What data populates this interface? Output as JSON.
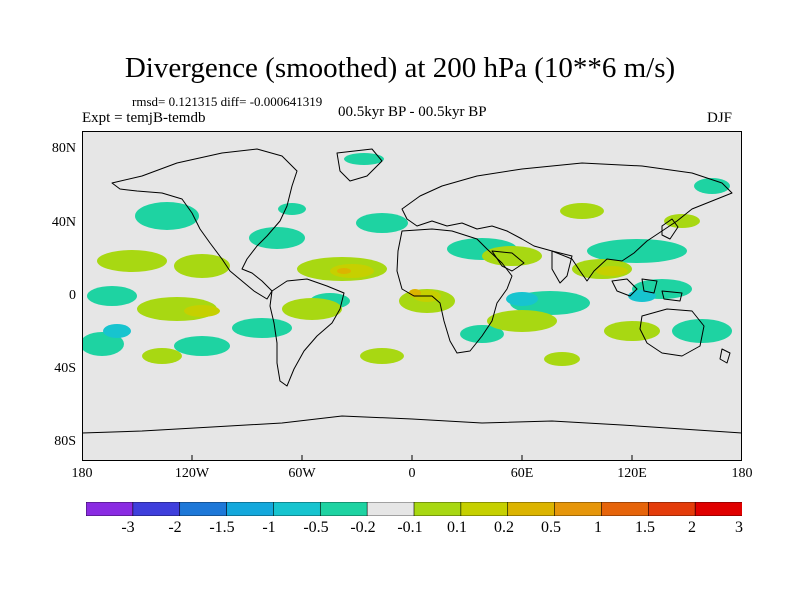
{
  "title": "Divergence (smoothed) at 200 hPa (10**6 m/s)",
  "stats_line": "rmsd= 0.121315  diff= -0.000641319",
  "experiment": "Expt = temjB-temdb",
  "period": "00.5kyr BP - 00.5kyr BP",
  "season": "DJF",
  "map": {
    "lat_labels": [
      "80N",
      "40N",
      "0",
      "40S",
      "80S"
    ],
    "lon_labels": [
      "180",
      "120W",
      "60W",
      "0",
      "60E",
      "120E",
      "180"
    ],
    "lat_range": [
      -90,
      90
    ],
    "lon_range": [
      -180,
      180
    ]
  },
  "colorbar": {
    "colors": [
      "#8a2be2",
      "#3f3fdc",
      "#1e78d8",
      "#14a8dc",
      "#17c4cf",
      "#1ed3a2",
      "#e6e6e6",
      "#a8d812",
      "#c6d000",
      "#dcb400",
      "#e6960a",
      "#e6640a",
      "#e43c0a",
      "#e00000"
    ],
    "labels": [
      "-3",
      "-2",
      "-1.5",
      "-1",
      "-0.5",
      "-0.2",
      "-0.1",
      "0.1",
      "0.2",
      "0.5",
      "1",
      "1.5",
      "2",
      "3"
    ]
  }
}
